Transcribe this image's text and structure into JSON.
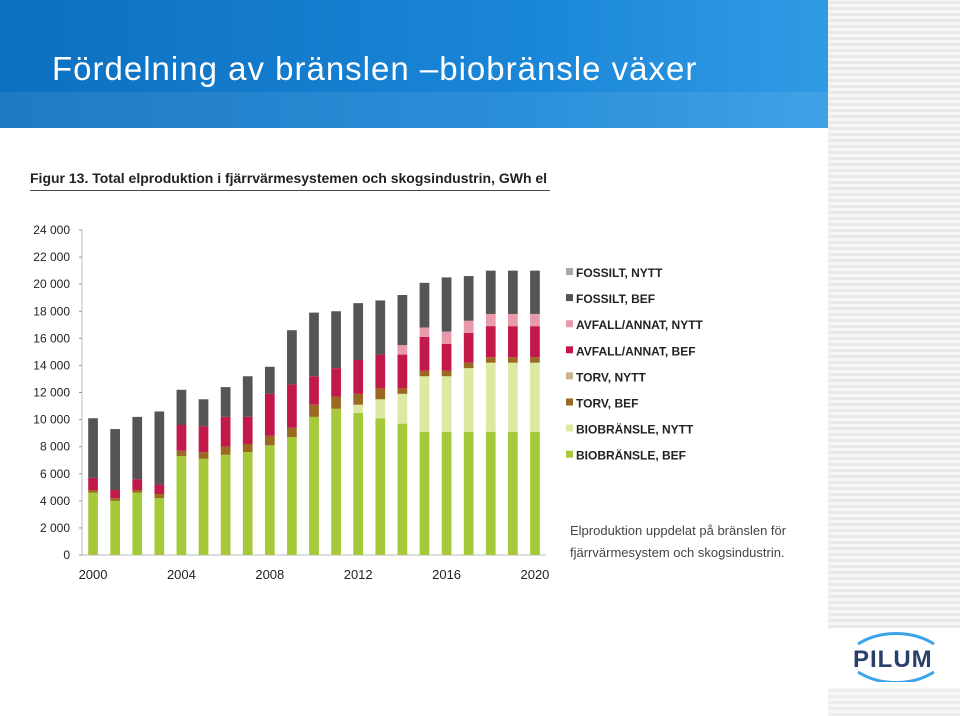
{
  "slide": {
    "title": "Fördelning av bränslen –biobränsle växer",
    "figure_title": "Figur 13. Total elproduktion i fjärrvärmesystemen och skogsindustrin, GWh el",
    "caption": "Elproduktion uppdelat på bränslen för fjärrvärmesystem och skogsindustrin.",
    "logo_text": "PILUM"
  },
  "chart_data": {
    "type": "bar",
    "stacked": true,
    "title": "Figur 13. Total elproduktion i fjärrvärmesystemen och skogsindustrin, GWh el",
    "xlabel": "",
    "ylabel": "",
    "ylim": [
      0,
      24000
    ],
    "y_ticks": [
      0,
      2000,
      4000,
      6000,
      8000,
      10000,
      12000,
      14000,
      16000,
      18000,
      20000,
      22000,
      24000
    ],
    "y_tick_labels": [
      "0",
      "2 000",
      "4 000",
      "6 000",
      "8 000",
      "10 000",
      "12 000",
      "14 000",
      "16 000",
      "18 000",
      "20 000",
      "22 000",
      "24 000"
    ],
    "categories": [
      2000,
      2001,
      2002,
      2003,
      2004,
      2005,
      2006,
      2007,
      2008,
      2009,
      2010,
      2011,
      2012,
      2013,
      2014,
      2015,
      2016,
      2017,
      2018,
      2019,
      2020
    ],
    "x_tick_labels": [
      {
        "year": 2000,
        "label": "2000"
      },
      {
        "year": 2004,
        "label": "2004"
      },
      {
        "year": 2008,
        "label": "2008"
      },
      {
        "year": 2012,
        "label": "2012"
      },
      {
        "year": 2016,
        "label": "2016"
      },
      {
        "year": 2020,
        "label": "2020"
      }
    ],
    "legend_position": "right",
    "grid": false,
    "series": [
      {
        "name": "BIOBRÄNSLE, BEF",
        "color": "#a6c93a",
        "values": [
          4600,
          4000,
          4600,
          4200,
          7300,
          7100,
          7400,
          7600,
          8100,
          8700,
          10200,
          10800,
          10500,
          10100,
          9700,
          9100,
          9100,
          9100,
          9100,
          9100,
          9100
        ]
      },
      {
        "name": "BIOBRÄNSLE, NYTT",
        "color": "#dbe9a2",
        "values": [
          0,
          0,
          0,
          0,
          0,
          0,
          0,
          0,
          0,
          0,
          0,
          0,
          600,
          1400,
          2200,
          4100,
          4100,
          4700,
          5100,
          5100,
          5100
        ]
      },
      {
        "name": "TORV, BEF",
        "color": "#9a6a22",
        "values": [
          200,
          200,
          200,
          300,
          400,
          500,
          600,
          600,
          700,
          700,
          900,
          900,
          800,
          800,
          400,
          400,
          400,
          400,
          400,
          400,
          400
        ]
      },
      {
        "name": "TORV, NYTT",
        "color": "#c8b68a",
        "values": [
          0,
          0,
          0,
          0,
          0,
          0,
          0,
          0,
          0,
          0,
          0,
          0,
          0,
          0,
          0,
          0,
          0,
          0,
          0,
          0,
          0
        ]
      },
      {
        "name": "AVFALL/ANNAT, BEF",
        "color": "#c2184a",
        "values": [
          900,
          600,
          800,
          700,
          1900,
          1900,
          2200,
          2000,
          3100,
          3200,
          2100,
          2100,
          2500,
          2500,
          2500,
          2500,
          2000,
          2200,
          2300,
          2300,
          2300
        ]
      },
      {
        "name": "AVFALL/ANNAT, NYTT",
        "color": "#e89aaa",
        "values": [
          0,
          0,
          0,
          0,
          0,
          0,
          0,
          0,
          0,
          0,
          0,
          0,
          0,
          0,
          700,
          700,
          900,
          900,
          900,
          900,
          900
        ]
      },
      {
        "name": "FOSSILT, BEF",
        "color": "#555555",
        "values": [
          4400,
          4500,
          4600,
          5400,
          2600,
          2000,
          2200,
          3000,
          2000,
          4000,
          4700,
          4200,
          4200,
          4000,
          3700,
          3300,
          4000,
          3300,
          3200,
          3200,
          3200
        ]
      },
      {
        "name": "FOSSILT, NYTT",
        "color": "#a8a8a8",
        "values": [
          0,
          0,
          0,
          0,
          0,
          0,
          0,
          0,
          0,
          0,
          0,
          0,
          0,
          0,
          0,
          0,
          0,
          0,
          0,
          0,
          0
        ]
      }
    ]
  }
}
